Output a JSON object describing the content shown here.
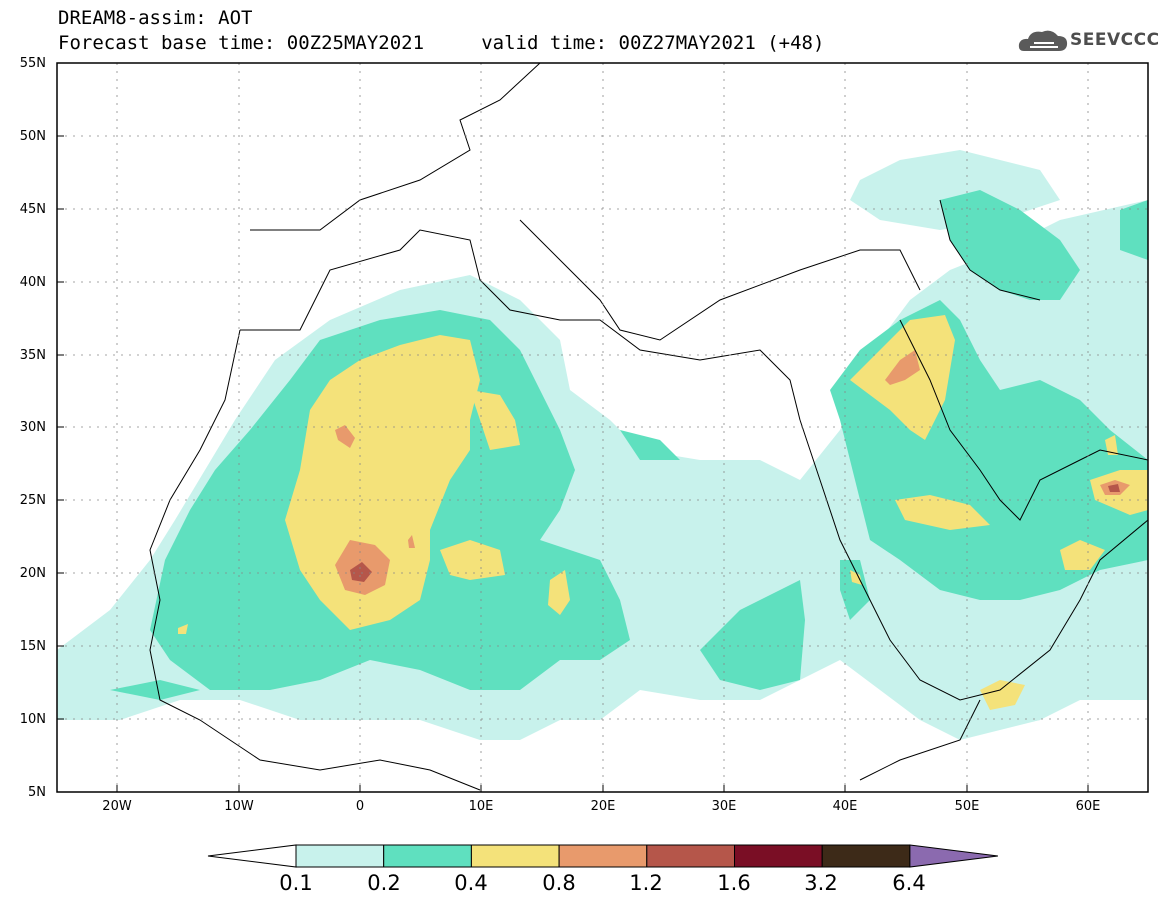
{
  "header": {
    "line1": "DREAM8-assim: AOT",
    "line2": "Forecast base time: 00Z25MAY2021     valid time: 00Z27MAY2021 (+48)"
  },
  "logo": {
    "text": "SEEVCCC",
    "icon": "cloud-logo-icon"
  },
  "map": {
    "lat_range": [
      5,
      55
    ],
    "lon_range": [
      -25,
      65
    ],
    "lat_labels": [
      "55N",
      "50N",
      "45N",
      "40N",
      "35N",
      "30N",
      "25N",
      "20N",
      "15N",
      "10N",
      "5N"
    ],
    "lon_labels": [
      "20W",
      "10W",
      "0",
      "10E",
      "20E",
      "30E",
      "40E",
      "50E",
      "60E"
    ]
  },
  "legend": {
    "colors": [
      "#ffffff",
      "#c8f2ec",
      "#5fe0bf",
      "#f4e27a",
      "#e89a6c",
      "#b5564a",
      "#7a0e25",
      "#3d2a18",
      "#8b6aaf"
    ],
    "labels": [
      "0.1",
      "0.2",
      "0.4",
      "0.8",
      "1.2",
      "1.6",
      "3.2",
      "6.4"
    ]
  }
}
